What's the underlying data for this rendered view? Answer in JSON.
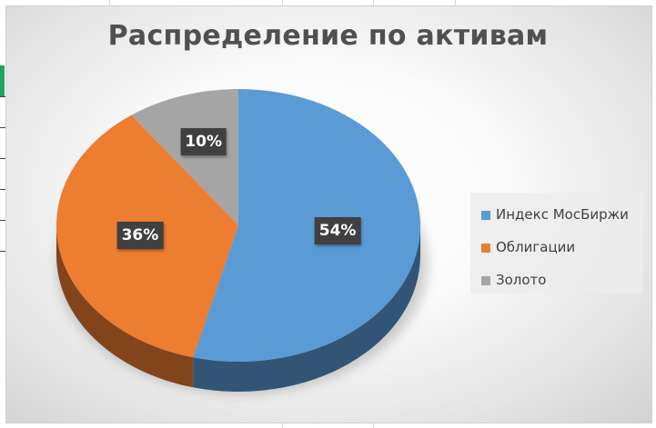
{
  "chart_data": {
    "type": "pie",
    "title": "Распределение по активам",
    "categories": [
      "Индекс МосБиржи",
      "Облигации",
      "Золото"
    ],
    "values": [
      54,
      36,
      10
    ],
    "data_labels": [
      "54%",
      "36%",
      "10%"
    ],
    "colors": [
      "#5b9bd5",
      "#ed7d31",
      "#a5a5a5"
    ],
    "style": "3d",
    "legend_position": "right"
  }
}
